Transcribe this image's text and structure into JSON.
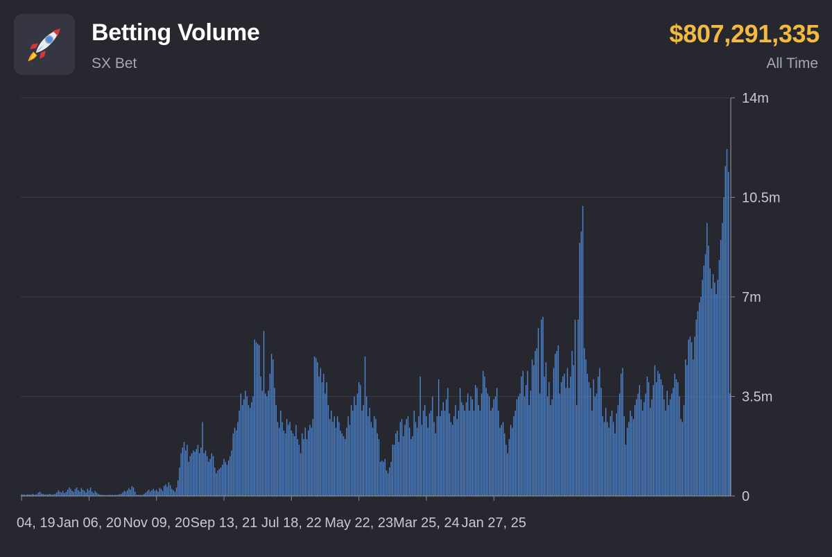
{
  "header": {
    "icon": "rocket-icon",
    "title": "Betting Volume",
    "subtitle": "SX Bet",
    "total": "$807,291,335",
    "period": "All Time"
  },
  "colors": {
    "background": "#26272f",
    "bar": "#4f8ad8",
    "accent": "#f3b940",
    "grid": "#3a3b44"
  },
  "chart_data": {
    "type": "bar",
    "title": "",
    "xlabel": "",
    "ylabel": "",
    "ylim": [
      0,
      14000000
    ],
    "y_ticks": [
      {
        "value": 0,
        "label": "0"
      },
      {
        "value": 3500000,
        "label": "3.5m"
      },
      {
        "value": 7000000,
        "label": "7m"
      },
      {
        "value": 10500000,
        "label": "10.5m"
      },
      {
        "value": 14000000,
        "label": "14m"
      }
    ],
    "x_ticks": [
      {
        "index": 0,
        "label": "04, 19"
      },
      {
        "index": 44,
        "label": "Jan 06, 20"
      },
      {
        "index": 88,
        "label": "Nov 09, 20"
      },
      {
        "index": 132,
        "label": "Sep 13, 21"
      },
      {
        "index": 176,
        "label": "Jul 18, 22"
      },
      {
        "index": 220,
        "label": "May 22, 23"
      },
      {
        "index": 264,
        "label": "Mar 25, 24"
      },
      {
        "index": 308,
        "label": "Jan 27, 25"
      }
    ],
    "grid": true,
    "legend": "none",
    "series": [
      {
        "values": [
          0.06,
          0.05,
          0.05,
          0.04,
          0.06,
          0.05,
          0.05,
          0.07,
          0.05,
          0.05,
          0.06,
          0.12,
          0.15,
          0.08,
          0.07,
          0.05,
          0.06,
          0.05,
          0.07,
          0.06,
          0.05,
          0.06,
          0.08,
          0.12,
          0.2,
          0.15,
          0.12,
          0.18,
          0.1,
          0.14,
          0.22,
          0.3,
          0.25,
          0.18,
          0.15,
          0.25,
          0.3,
          0.2,
          0.15,
          0.28,
          0.22,
          0.18,
          0.12,
          0.25,
          0.2,
          0.3,
          0.15,
          0.1,
          0.18,
          0.12,
          0.08,
          0.05,
          0.04,
          0.04,
          0.04,
          0.03,
          0.03,
          0.04,
          0.04,
          0.04,
          0.03,
          0.04,
          0.04,
          0.05,
          0.06,
          0.08,
          0.12,
          0.18,
          0.15,
          0.2,
          0.28,
          0.22,
          0.35,
          0.3,
          0.15,
          0.04,
          0.04,
          0.04,
          0.04,
          0.04,
          0.08,
          0.12,
          0.18,
          0.22,
          0.15,
          0.2,
          0.25,
          0.18,
          0.22,
          0.15,
          0.28,
          0.25,
          0.18,
          0.35,
          0.4,
          0.32,
          0.48,
          0.38,
          0.25,
          0.2,
          0.15,
          0.3,
          0.55,
          1.0,
          1.5,
          1.7,
          1.9,
          1.6,
          1.8,
          1.2,
          1.4,
          1.5,
          1.6,
          1.55,
          1.65,
          1.8,
          1.5,
          1.7,
          2.6,
          1.5,
          1.6,
          1.4,
          1.2,
          1.3,
          1.5,
          1.4,
          1.0,
          0.8,
          0.9,
          0.95,
          1.0,
          1.1,
          1.3,
          1.2,
          1.1,
          1.25,
          1.4,
          1.6,
          2.2,
          2.4,
          2.3,
          2.6,
          3.0,
          3.6,
          3.2,
          3.4,
          3.7,
          3.5,
          3.2,
          3.1,
          3.3,
          3.5,
          5.5,
          5.4,
          5.35,
          5.3,
          4.2,
          3.7,
          5.8,
          3.6,
          3.5,
          3.7,
          4.3,
          5.0,
          4.8,
          3.8,
          3.2,
          2.6,
          2.4,
          3.0,
          2.6,
          2.3,
          2.2,
          2.7,
          2.5,
          2.6,
          2.3,
          2.2,
          2.1,
          2.5,
          2.0,
          1.8,
          1.5,
          2.2,
          2.0,
          2.4,
          2.0,
          2.3,
          2.5,
          2.4,
          2.7,
          4.9,
          4.85,
          4.7,
          4.2,
          4.5,
          4.0,
          4.3,
          3.6,
          4.0,
          3.2,
          2.7,
          3.0,
          2.6,
          2.8,
          2.4,
          2.8,
          2.6,
          2.3,
          2.2,
          2.1,
          2.0,
          2.4,
          2.8,
          2.5,
          3.2,
          3.0,
          3.5,
          3.2,
          3.6,
          4.0,
          3.9,
          3.0,
          3.2,
          4.9,
          3.5,
          2.8,
          3.1,
          2.6,
          2.4,
          2.8,
          2.7,
          2.2,
          2.0,
          1.2,
          1.25,
          1.2,
          1.3,
          0.9,
          0.8,
          1.0,
          1.2,
          1.8,
          1.8,
          2.2,
          2.3,
          1.9,
          2.6,
          2.7,
          2.1,
          2.5,
          2.7,
          2.8,
          2.4,
          2.0,
          2.1,
          3.0,
          2.6,
          2.4,
          2.8,
          4.2,
          2.5,
          3.0,
          3.2,
          2.8,
          2.4,
          2.9,
          3.0,
          3.5,
          2.6,
          2.2,
          2.8,
          4.1,
          2.8,
          3.0,
          3.3,
          3.0,
          3.4,
          3.8,
          2.9,
          2.6,
          2.5,
          2.8,
          3.2,
          2.7,
          3.0,
          3.8,
          3.3,
          3.2,
          3.0,
          3.3,
          3.6,
          3.0,
          3.5,
          3.4,
          3.0,
          3.9,
          3.8,
          3.2,
          3.0,
          3.6,
          4.4,
          4.2,
          3.8,
          3.6,
          3.5,
          3.0,
          3.1,
          3.4,
          3.5,
          3.8,
          3.0,
          2.4,
          2.5,
          2.6,
          2.2,
          1.8,
          1.5,
          2.0,
          2.5,
          2.4,
          2.8,
          3.0,
          3.4,
          3.5,
          3.6,
          4.2,
          4.4,
          3.5,
          3.9,
          4.4,
          3.2,
          3.7,
          4.8,
          4.6,
          5.1,
          5.2,
          5.9,
          3.6,
          6.2,
          6.3,
          4.2,
          4.7,
          3.5,
          4.0,
          3.2,
          3.4,
          4.5,
          5.0,
          5.1,
          5.3,
          3.6,
          4.0,
          4.2,
          4.3,
          3.8,
          4.5,
          3.8,
          4.2,
          5.1,
          4.6,
          6.2,
          3.2,
          6.2,
          8.9,
          9.3,
          10.2,
          5.2,
          4.8,
          4.3,
          4.0,
          3.8,
          3.0,
          4.1,
          3.5,
          3.6,
          4.2,
          4.5,
          3.8,
          2.8,
          2.6,
          3.1,
          2.6,
          2.4,
          2.8,
          3.0,
          2.6,
          2.2,
          2.9,
          3.2,
          3.6,
          4.3,
          4.5,
          2.8,
          1.8,
          2.4,
          2.6,
          3.0,
          2.8,
          2.7,
          3.2,
          3.4,
          3.6,
          3.9,
          3.4,
          3.0,
          3.3,
          3.6,
          4.2,
          4.0,
          3.1,
          3.4,
          3.9,
          4.6,
          4.0,
          4.4,
          4.3,
          4.1,
          3.9,
          3.4,
          3.0,
          3.7,
          3.2,
          3.4,
          3.6,
          3.8,
          4.3,
          4.1,
          4.0,
          3.5,
          2.7,
          2.6,
          3.2,
          4.8,
          4.6,
          5.5,
          5.6,
          5.4,
          4.8,
          5.6,
          6.2,
          6.5,
          6.8,
          7.0,
          7.6,
          8.1,
          8.5,
          9.6,
          8.8,
          8.0,
          7.3,
          7.8,
          7.5,
          7.1,
          7.6,
          8.3,
          9.0,
          9.6,
          10.5,
          11.6,
          12.2,
          11.4,
          3.6
        ]
      }
    ]
  }
}
